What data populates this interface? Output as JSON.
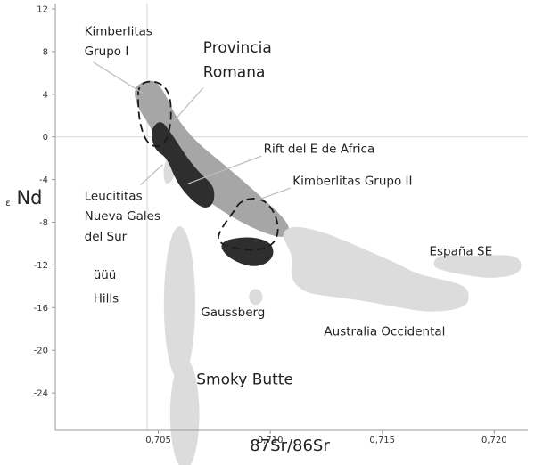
{
  "chart_data": {
    "type": "scatter",
    "title": "",
    "xlabel": "87Sr/86Sr",
    "ylabel": "εNd",
    "ylabel_symbol": "ε",
    "ylabel_text": "Nd",
    "xlim": [
      0.7004,
      0.7215
    ],
    "ylim": [
      -27.5,
      12.5
    ],
    "x_ticks": [
      "0,705",
      "0,710",
      "0,715",
      "0,720"
    ],
    "y_ticks": [
      "12",
      "8",
      "4",
      "0",
      "-4",
      "-8",
      "-12",
      "-16",
      "-20",
      "-24"
    ],
    "reference_lines": {
      "x": 0.7045,
      "y": 0
    },
    "grid": false,
    "legend": "none",
    "colors": {
      "light": "#dcdcdc",
      "medium": "#a6a6a6",
      "dark": "#2e2e2e",
      "outline": "#1a1a1a"
    },
    "fields": [
      {
        "name": "Provincia Romana",
        "fill": "medium",
        "points": [
          [
            0.7039,
            4.8
          ],
          [
            0.7048,
            5.5
          ],
          [
            0.7053,
            4.1
          ],
          [
            0.7058,
            1.8
          ],
          [
            0.7067,
            -0.5
          ],
          [
            0.708,
            -2.7
          ],
          [
            0.7097,
            -5.8
          ],
          [
            0.7107,
            -7.8
          ],
          [
            0.7109,
            -8.9
          ],
          [
            0.7106,
            -9.5
          ],
          [
            0.7097,
            -9.0
          ],
          [
            0.7086,
            -7.9
          ],
          [
            0.7073,
            -6.2
          ],
          [
            0.7061,
            -4.0
          ],
          [
            0.7052,
            -1.8
          ],
          [
            0.7047,
            0.8
          ],
          [
            0.704,
            3.0
          ]
        ]
      },
      {
        "name": "Rift del E de Africa",
        "fill": "light",
        "points": [
          [
            0.7055,
            -1.2
          ],
          [
            0.7059,
            -1.8
          ],
          [
            0.7057,
            -4.0
          ],
          [
            0.7053,
            -4.6
          ],
          [
            0.7052,
            -3.0
          ]
        ]
      },
      {
        "name": "Leucititas Nueva Gales del Sur",
        "fill": "dark",
        "points": [
          [
            0.7047,
            0.8
          ],
          [
            0.7051,
            1.6
          ],
          [
            0.7055,
            0.6
          ],
          [
            0.7063,
            -2.0
          ],
          [
            0.7069,
            -3.5
          ],
          [
            0.7075,
            -4.6
          ],
          [
            0.7075,
            -6.2
          ],
          [
            0.7071,
            -6.8
          ],
          [
            0.7065,
            -6.0
          ],
          [
            0.7058,
            -4.2
          ],
          [
            0.7054,
            -2.0
          ],
          [
            0.7049,
            -1.3
          ],
          [
            0.7047,
            -0.2
          ]
        ]
      },
      {
        "name": "Kimberlitas Grupo II",
        "fill": "dark",
        "points": [
          [
            0.7077,
            -9.8
          ],
          [
            0.709,
            -9.3
          ],
          [
            0.71,
            -9.8
          ],
          [
            0.7102,
            -11.0
          ],
          [
            0.7098,
            -12.0
          ],
          [
            0.709,
            -12.2
          ],
          [
            0.708,
            -11.2
          ]
        ]
      },
      {
        "name": "Australia Occidental",
        "fill": "light",
        "points": [
          [
            0.711,
            -8.3
          ],
          [
            0.7122,
            -8.8
          ],
          [
            0.7133,
            -9.7
          ],
          [
            0.7145,
            -10.8
          ],
          [
            0.7158,
            -12.0
          ],
          [
            0.7165,
            -12.8
          ],
          [
            0.7175,
            -13.3
          ],
          [
            0.7185,
            -13.8
          ],
          [
            0.7189,
            -14.5
          ],
          [
            0.7188,
            -16.0
          ],
          [
            0.7172,
            -16.5
          ],
          [
            0.7155,
            -15.9
          ],
          [
            0.714,
            -15.3
          ],
          [
            0.7128,
            -15.0
          ],
          [
            0.7115,
            -14.6
          ],
          [
            0.7109,
            -13.3
          ],
          [
            0.711,
            -11.2
          ],
          [
            0.7107,
            -10.0
          ],
          [
            0.7105,
            -9.0
          ]
        ]
      },
      {
        "name": "España SE",
        "fill": "light",
        "points": [
          [
            0.7175,
            -11.0
          ],
          [
            0.719,
            -11.2
          ],
          [
            0.7205,
            -11.0
          ],
          [
            0.7212,
            -11.4
          ],
          [
            0.7212,
            -12.8
          ],
          [
            0.72,
            -13.3
          ],
          [
            0.7188,
            -13.0
          ],
          [
            0.7178,
            -12.6
          ],
          [
            0.7172,
            -12.1
          ]
        ]
      },
      {
        "name": "Gaussberg",
        "fill": "light",
        "ellipse": {
          "cx": 0.70935,
          "cy": -15.0,
          "rx": 0.0003,
          "ry": 0.75
        }
      },
      {
        "name": "Leucite Hills",
        "fill": "light",
        "ellipse": {
          "cx": 0.70595,
          "cy": -15.6,
          "rx": 0.0007,
          "ry": 7.2
        }
      },
      {
        "name": "Smoky Butte",
        "fill": "light",
        "ellipse": {
          "cx": 0.70618,
          "cy": -26.0,
          "rx": 0.00065,
          "ry": 5.2
        }
      }
    ],
    "outlines": [
      {
        "name": "Kimberlitas Grupo I",
        "style": "dashed",
        "points": [
          [
            0.7041,
            5.0
          ],
          [
            0.7049,
            5.3
          ],
          [
            0.7055,
            4.3
          ],
          [
            0.7056,
            1.8
          ],
          [
            0.7054,
            -0.3
          ],
          [
            0.705,
            -1.0
          ],
          [
            0.7045,
            -0.6
          ],
          [
            0.7042,
            1.0
          ],
          [
            0.7041,
            2.8
          ]
        ]
      },
      {
        "name": "Kimberlitas Grupo II",
        "style": "dashed",
        "points": [
          [
            0.7087,
            -5.9
          ],
          [
            0.7096,
            -5.7
          ],
          [
            0.7102,
            -7.0
          ],
          [
            0.7104,
            -8.9
          ],
          [
            0.7101,
            -10.2
          ],
          [
            0.7093,
            -10.7
          ],
          [
            0.7083,
            -10.4
          ],
          [
            0.7076,
            -9.8
          ],
          [
            0.7078,
            -8.6
          ],
          [
            0.7083,
            -7.2
          ]
        ]
      }
    ],
    "labels": [
      {
        "id": "kimb1_l1",
        "text": "Kimberlitas",
        "x": 0.7017,
        "y": 9.55,
        "size": "normal"
      },
      {
        "id": "kimb1_l2",
        "text": "Grupo I",
        "x": 0.7017,
        "y": 7.65,
        "size": "normal"
      },
      {
        "id": "romana_l1",
        "text": "Provincia",
        "x": 0.707,
        "y": 7.9,
        "size": "big"
      },
      {
        "id": "romana_l2",
        "text": "Romana",
        "x": 0.707,
        "y": 5.6,
        "size": "big"
      },
      {
        "id": "rift",
        "text": "Rift del E de Africa",
        "x": 0.7097,
        "y": -1.5,
        "size": "normal"
      },
      {
        "id": "kimb2",
        "text": "Kimberlitas Grupo II",
        "x": 0.711,
        "y": -4.5,
        "size": "normal"
      },
      {
        "id": "leuc_l1",
        "text": "Leucititas",
        "x": 0.7017,
        "y": -5.9,
        "size": "normal"
      },
      {
        "id": "leuc_l2",
        "text": "Nueva Gales",
        "x": 0.7017,
        "y": -7.8,
        "size": "normal"
      },
      {
        "id": "leuc_l3",
        "text": "del Sur",
        "x": 0.7017,
        "y": -9.7,
        "size": "normal"
      },
      {
        "id": "espana",
        "text": "España SE",
        "x": 0.7171,
        "y": -11.1,
        "size": "normal"
      },
      {
        "id": "hills_l1",
        "text": "üüü",
        "x": 0.7021,
        "y": -13.3,
        "size": "normal"
      },
      {
        "id": "hills_l2",
        "text": "Hills",
        "x": 0.7021,
        "y": -15.5,
        "size": "normal"
      },
      {
        "id": "gauss",
        "text": "Gaussberg",
        "x": 0.7069,
        "y": -16.8,
        "size": "normal"
      },
      {
        "id": "austr",
        "text": "Australia Occidental",
        "x": 0.7124,
        "y": -18.6,
        "size": "normal"
      },
      {
        "id": "smoky",
        "text": "Smoky Butte",
        "x": 0.7067,
        "y": -23.2,
        "size": "big"
      }
    ],
    "leaders": [
      {
        "name": "kimberlitas-grupo-i-leader",
        "points": [
          [
            0.7021,
            7.0
          ],
          [
            0.7043,
            4.1
          ]
        ]
      },
      {
        "name": "provincia-romana-leader",
        "points": [
          [
            0.707,
            4.6
          ],
          [
            0.7057,
            1.5
          ]
        ]
      },
      {
        "name": "rift-leader",
        "points": [
          [
            0.7096,
            -1.8
          ],
          [
            0.7063,
            -4.4
          ]
        ]
      },
      {
        "name": "kimberlitas-grupo-ii-leader",
        "points": [
          [
            0.7109,
            -4.8
          ],
          [
            0.7093,
            -6.0
          ]
        ]
      },
      {
        "name": "leucititas-leader",
        "points": [
          [
            0.7042,
            -4.5
          ],
          [
            0.7052,
            -2.6
          ]
        ]
      }
    ]
  }
}
